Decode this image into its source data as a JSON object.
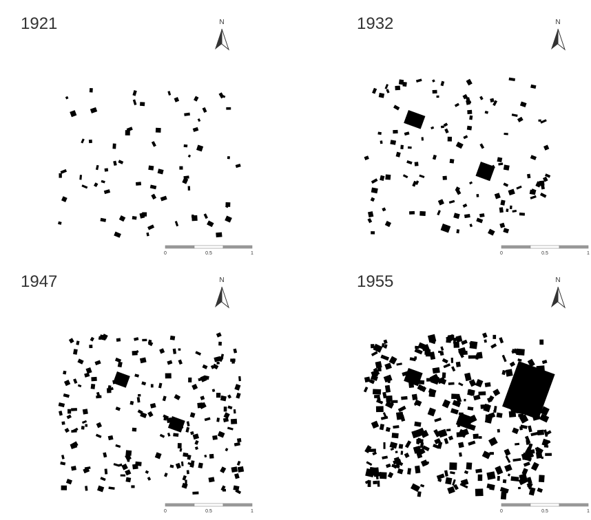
{
  "panels": [
    {
      "year": "1921",
      "north": "N",
      "scale": [
        "0",
        "0.5",
        "1"
      ]
    },
    {
      "year": "1932",
      "north": "N",
      "scale": [
        "0",
        "0.5",
        "1"
      ]
    },
    {
      "year": "1947",
      "north": "N",
      "scale": [
        "0",
        "0.5",
        "1"
      ]
    },
    {
      "year": "1955",
      "north": "N",
      "scale": [
        "0",
        "0.5",
        "1"
      ]
    }
  ]
}
